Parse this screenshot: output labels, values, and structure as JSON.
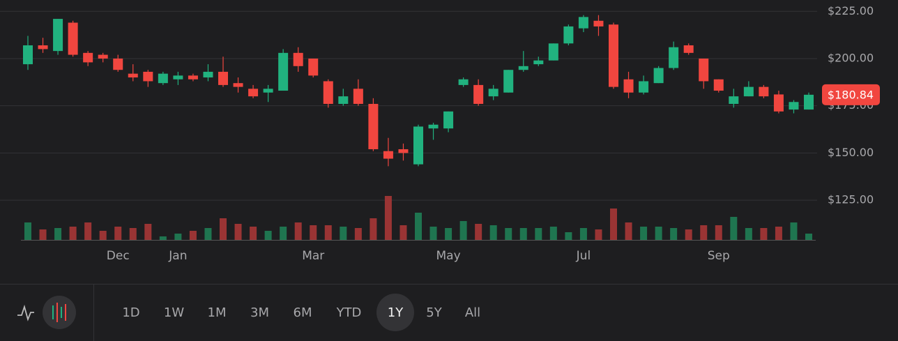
{
  "chart_data": {
    "type": "candlestick",
    "categories": [
      null,
      null,
      null,
      null,
      null,
      null,
      "Dec",
      null,
      null,
      null,
      "Jan",
      null,
      null,
      null,
      null,
      null,
      null,
      null,
      null,
      "Mar",
      null,
      null,
      null,
      null,
      null,
      null,
      null,
      null,
      "May",
      null,
      null,
      null,
      null,
      null,
      null,
      null,
      null,
      "Jul",
      null,
      null,
      null,
      null,
      null,
      null,
      null,
      null,
      "Sep",
      null,
      null,
      null,
      null,
      null,
      null
    ],
    "open": [
      197,
      207,
      204,
      219,
      203,
      202,
      200,
      192,
      193,
      187,
      189,
      191,
      190,
      193,
      187,
      184,
      182,
      183,
      203,
      200,
      188,
      176,
      184,
      176,
      151,
      152,
      144,
      163,
      163,
      186,
      186,
      180,
      182,
      194,
      197,
      199,
      208,
      216,
      220,
      218,
      189,
      182,
      187,
      195,
      207,
      200,
      189,
      176,
      180,
      185,
      181,
      173,
      173
    ],
    "high": [
      212,
      211,
      221,
      220,
      204,
      203,
      202,
      197,
      194,
      193,
      193,
      192,
      197,
      201,
      190,
      186,
      186,
      205,
      206,
      200,
      189,
      184,
      189,
      179,
      158,
      155,
      165,
      166,
      172,
      190,
      189,
      186,
      194,
      204,
      201,
      208,
      218,
      223,
      223,
      219,
      193,
      191,
      196,
      209,
      208,
      200,
      189,
      184,
      188,
      186,
      183,
      178,
      182
    ],
    "low": [
      194,
      203,
      202,
      201,
      196,
      198,
      193,
      188,
      185,
      186,
      186,
      188,
      188,
      185,
      182,
      179,
      177,
      183,
      193,
      190,
      174,
      175,
      175,
      151,
      143,
      146,
      143,
      157,
      161,
      185,
      175,
      178,
      182,
      193,
      196,
      199,
      207,
      214,
      212,
      184,
      179,
      181,
      187,
      194,
      202,
      184,
      182,
      174,
      180,
      179,
      171,
      171,
      173
    ],
    "close": [
      207,
      205,
      221,
      202,
      198,
      200,
      194,
      190,
      188,
      192,
      191,
      189,
      193,
      186,
      185,
      180,
      184,
      203,
      196,
      191,
      176,
      180,
      176,
      152,
      147,
      150,
      164,
      165,
      172,
      189,
      176,
      184,
      194,
      196,
      199,
      208,
      217,
      222,
      217,
      185,
      182,
      188,
      195,
      206,
      203,
      188,
      183,
      180,
      185,
      180,
      172,
      177,
      180.84
    ],
    "volume": [
      25,
      15,
      17,
      19,
      25,
      13,
      19,
      17,
      23,
      5,
      9,
      13,
      17,
      31,
      23,
      19,
      13,
      19,
      25,
      21,
      21,
      19,
      17,
      31,
      63,
      21,
      39,
      19,
      17,
      27,
      23,
      21,
      17,
      17,
      17,
      19,
      11,
      17,
      15,
      45,
      25,
      19,
      19,
      17,
      15,
      21,
      21,
      33,
      17,
      17,
      19,
      25,
      9
    ],
    "volume_ylim": [
      0,
      100
    ],
    "ylim": [
      104,
      231
    ],
    "yticks": [
      {
        "value": 225,
        "label": "$225.00"
      },
      {
        "value": 200,
        "label": "$200.00"
      },
      {
        "value": 175,
        "label": "$175.00"
      },
      {
        "value": 150,
        "label": "$150.00"
      },
      {
        "value": 125,
        "label": "$125.00"
      }
    ],
    "grid": true,
    "up_color": "#21b27f",
    "down_color": "#f1463f",
    "up_volume_color": "#1f7550",
    "down_volume_color": "#9a3434",
    "current_price": 180.84,
    "current_price_label": "$180.84",
    "range_options": [
      "1D",
      "1W",
      "1M",
      "3M",
      "6M",
      "YTD",
      "1Y",
      "5Y",
      "All"
    ],
    "selected_range": "1Y"
  }
}
